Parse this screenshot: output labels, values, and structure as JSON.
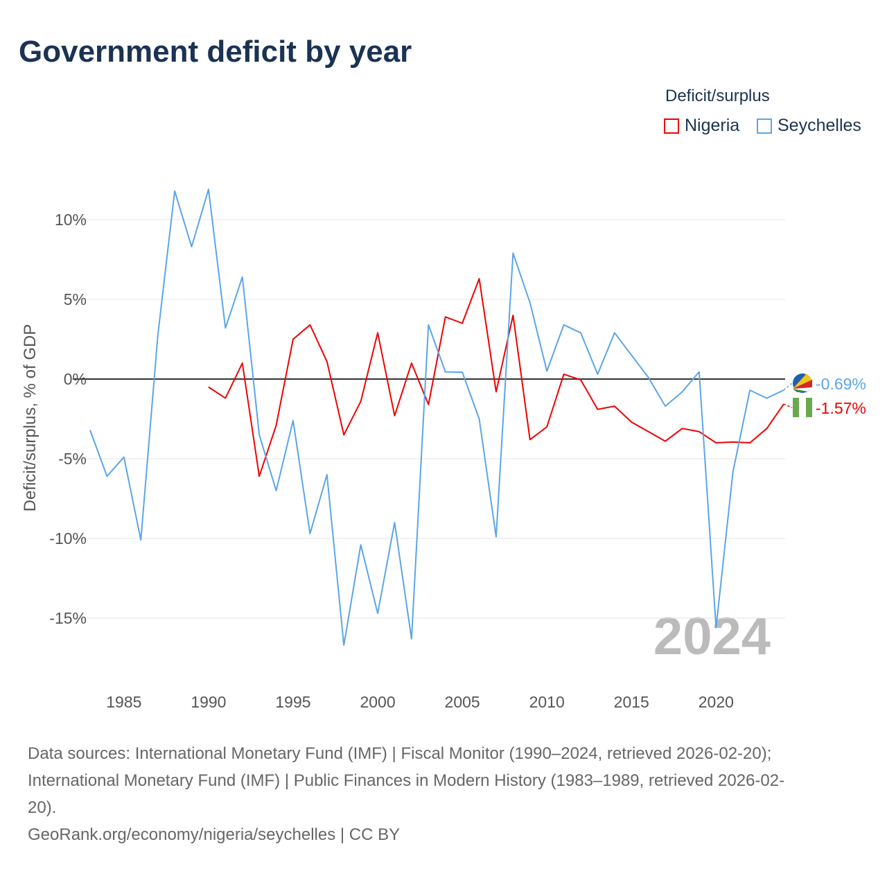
{
  "chart_data": {
    "type": "line",
    "title": "Government deficit by year",
    "ylabel": "Deficit/surplus, % of GDP",
    "xlabel": "",
    "legend_title": "Deficit/surplus",
    "legend_position": "top-right",
    "xlim": [
      1983,
      2024
    ],
    "ylim": [
      -19,
      13.5
    ],
    "x_ticks": [
      1985,
      1990,
      1995,
      2000,
      2005,
      2010,
      2015,
      2020
    ],
    "y_ticks": [
      10,
      5,
      0,
      -5,
      -10,
      -15
    ],
    "y_tick_labels": [
      "10%",
      "5%",
      "0%",
      "-5%",
      "-10%",
      "-15%"
    ],
    "watermark_year": "2024",
    "series": [
      {
        "name": "Nigeria",
        "color": "#ee0000",
        "end_label": "-1.57%",
        "start": 1990,
        "values": [
          -0.5,
          -1.2,
          1.0,
          -6.1,
          -2.9,
          2.5,
          3.4,
          1.1,
          -3.5,
          -1.4,
          2.9,
          -2.3,
          1.0,
          -1.6,
          3.9,
          3.5,
          6.3,
          -0.8,
          4.0,
          -3.8,
          -3.0,
          0.3,
          -0.05,
          -1.9,
          -1.7,
          -2.7,
          -3.3,
          -3.9,
          -3.1,
          -3.3,
          -4.0,
          -3.95,
          -4.0,
          -3.1,
          -1.57
        ]
      },
      {
        "name": "Seychelles",
        "color": "#5aa5e8",
        "end_label": "-0.69%",
        "start": 1983,
        "values": [
          -3.2,
          -6.1,
          -4.9,
          -10.1,
          2.7,
          11.8,
          8.3,
          11.9,
          3.2,
          6.4,
          -3.5,
          -7.0,
          -2.6,
          -9.7,
          -6.0,
          -16.7,
          -10.4,
          -14.7,
          -9.0,
          -16.3,
          3.4,
          0.45,
          0.43,
          -2.5,
          -9.9,
          7.9,
          4.8,
          0.5,
          3.4,
          2.9,
          0.3,
          2.9,
          1.5,
          0.1,
          -1.7,
          -0.8,
          0.45,
          -15.6,
          -5.8,
          -0.7,
          -1.2,
          -0.69
        ]
      }
    ]
  },
  "footer": {
    "line1": "Data sources: International Monetary Fund (IMF) | Fiscal Monitor (1990–2024, retrieved 2026-02-20);",
    "line2": "International Monetary Fund (IMF) | Public Finances in Modern History (1983–1989, retrieved 2026-02-",
    "line3": "20).",
    "line4": "GeoRank.org/economy/nigeria/seychelles | CC BY"
  }
}
